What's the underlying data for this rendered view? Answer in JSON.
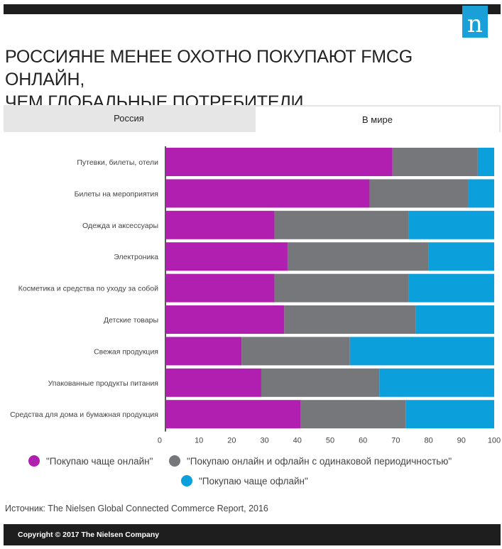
{
  "header": {
    "logo_letter": "n"
  },
  "title_line1": "РОССИЯНЕ МЕНЕЕ ОХОТНО ПОКУПАЮТ FMCG ОНЛАЙН,",
  "title_line2": "ЧЕМ ГЛОБАЛЬНЫЕ ПОТРЕБИТЕЛИ",
  "tabs": [
    {
      "label": "Россия",
      "selected": false
    },
    {
      "label": "В мире",
      "selected": true
    }
  ],
  "chart_data": {
    "type": "bar",
    "orientation": "horizontal",
    "stacked": true,
    "categories": [
      "Путевки, билеты, отели",
      "Билеты на мероприятия",
      "Одежда и аксессуары",
      "Электроника",
      "Косметика и средства по уходу за собой",
      "Детские товары",
      "Свежая продукция",
      "Упакованные продукты питания",
      "Средства для дома и бумажная продукция"
    ],
    "series": [
      {
        "name": "\"Покупаю чаще онлайн\"",
        "color": "#b11fb0",
        "values": [
          69,
          62,
          33,
          37,
          33,
          36,
          23,
          29,
          41
        ]
      },
      {
        "name": "\"Покупаю онлайн и офлайн с одинаковой периодичностью\"",
        "color": "#76777b",
        "values": [
          26,
          30,
          41,
          43,
          41,
          40,
          33,
          36,
          32
        ]
      },
      {
        "name": "\"Покупаю чаще офлайн\"",
        "color": "#0b9fdc",
        "values": [
          5,
          8,
          26,
          20,
          26,
          24,
          44,
          35,
          27
        ]
      }
    ],
    "xlim": [
      0,
      100
    ],
    "xticks": [
      0,
      10,
      20,
      30,
      40,
      50,
      60,
      70,
      80,
      90,
      100
    ],
    "xlabel": "",
    "ylabel": "",
    "legend_position": "bottom"
  },
  "source": "Источник: The Nielsen Global Connected Commerce Report, 2016",
  "footer": {
    "copyright": "Copyright © 2017 The Nielsen Company"
  }
}
